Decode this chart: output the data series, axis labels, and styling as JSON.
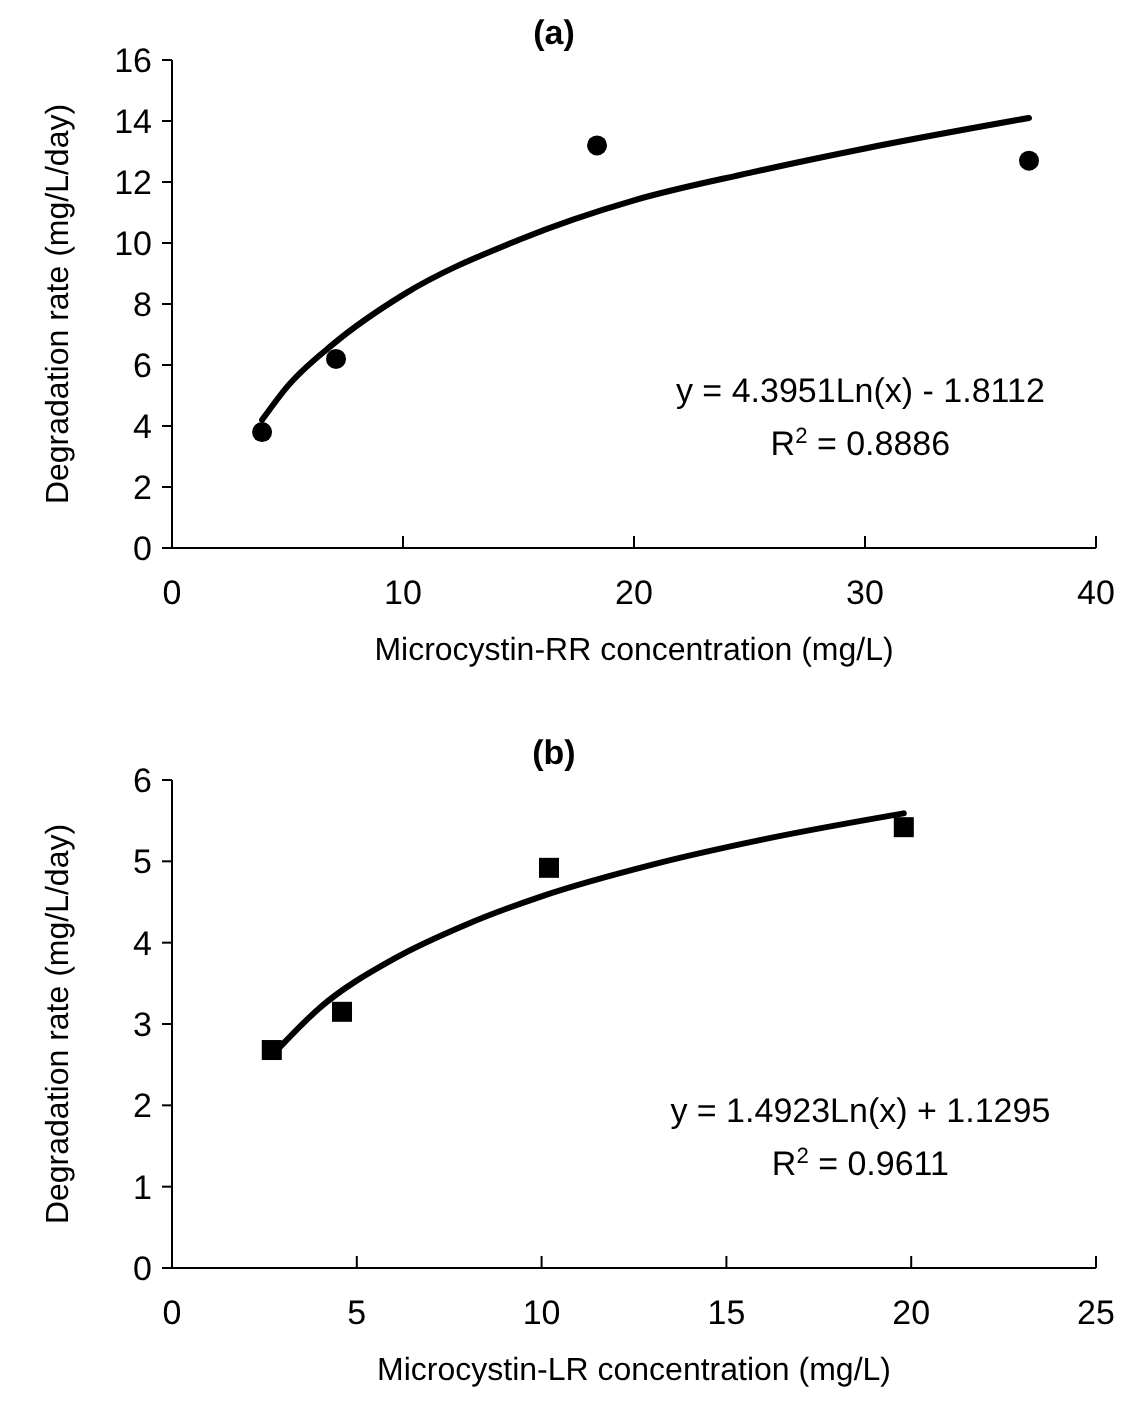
{
  "chart_data": [
    {
      "type": "scatter",
      "title": "(a)",
      "xlabel": "Microcystin-RR concentration (mg/L)",
      "ylabel": "Degradation rate (mg/L/day)",
      "xlim": [
        0,
        40
      ],
      "xticks": [
        0,
        10,
        20,
        30,
        40
      ],
      "ylim": [
        0,
        16
      ],
      "yticks": [
        0,
        2,
        4,
        6,
        8,
        10,
        12,
        14,
        16
      ],
      "grid": false,
      "annotations": [
        "y = 4.3951Ln(x) - 1.8112",
        "R$^{2}$ = 0.8886"
      ],
      "series": [
        {
          "type": "scatter",
          "marker": "circle",
          "color": "#000000",
          "x": [
            3.9,
            7.1,
            18.4,
            37.1
          ],
          "values": [
            3.8,
            6.2,
            13.2,
            12.7
          ]
        },
        {
          "type": "line",
          "marker": "none",
          "line_style": "solid",
          "color": "#000000",
          "x": [
            3.9,
            5,
            7,
            10,
            15,
            20,
            25,
            30,
            37.1
          ],
          "values": [
            4.2,
            5.3,
            6.7,
            8.3,
            10.1,
            11.4,
            12.3,
            13.1,
            14.1
          ]
        }
      ]
    },
    {
      "type": "scatter",
      "title": "(b)",
      "xlabel": "Microcystin-LR concentration (mg/L)",
      "ylabel": "Degradation rate (mg/L/day)",
      "xlim": [
        0,
        25
      ],
      "xticks": [
        0,
        5,
        10,
        15,
        20,
        25
      ],
      "ylim": [
        0,
        6
      ],
      "yticks": [
        0,
        1,
        2,
        3,
        4,
        5,
        6
      ],
      "grid": false,
      "annotations": [
        "y = 1.4923Ln(x) + 1.1295",
        "R$^{2}$ = 0.9611"
      ],
      "series": [
        {
          "type": "scatter",
          "marker": "square",
          "color": "#000000",
          "x": [
            2.7,
            4.6,
            10.2,
            19.8
          ],
          "values": [
            2.68,
            3.15,
            4.92,
            5.42
          ]
        },
        {
          "type": "line",
          "marker": "none",
          "line_style": "solid",
          "color": "#000000",
          "x": [
            2.7,
            4,
            6,
            8,
            10,
            13,
            16,
            19.8
          ],
          "values": [
            2.61,
            3.2,
            3.8,
            4.23,
            4.57,
            4.96,
            5.27,
            5.59
          ]
        }
      ]
    }
  ]
}
